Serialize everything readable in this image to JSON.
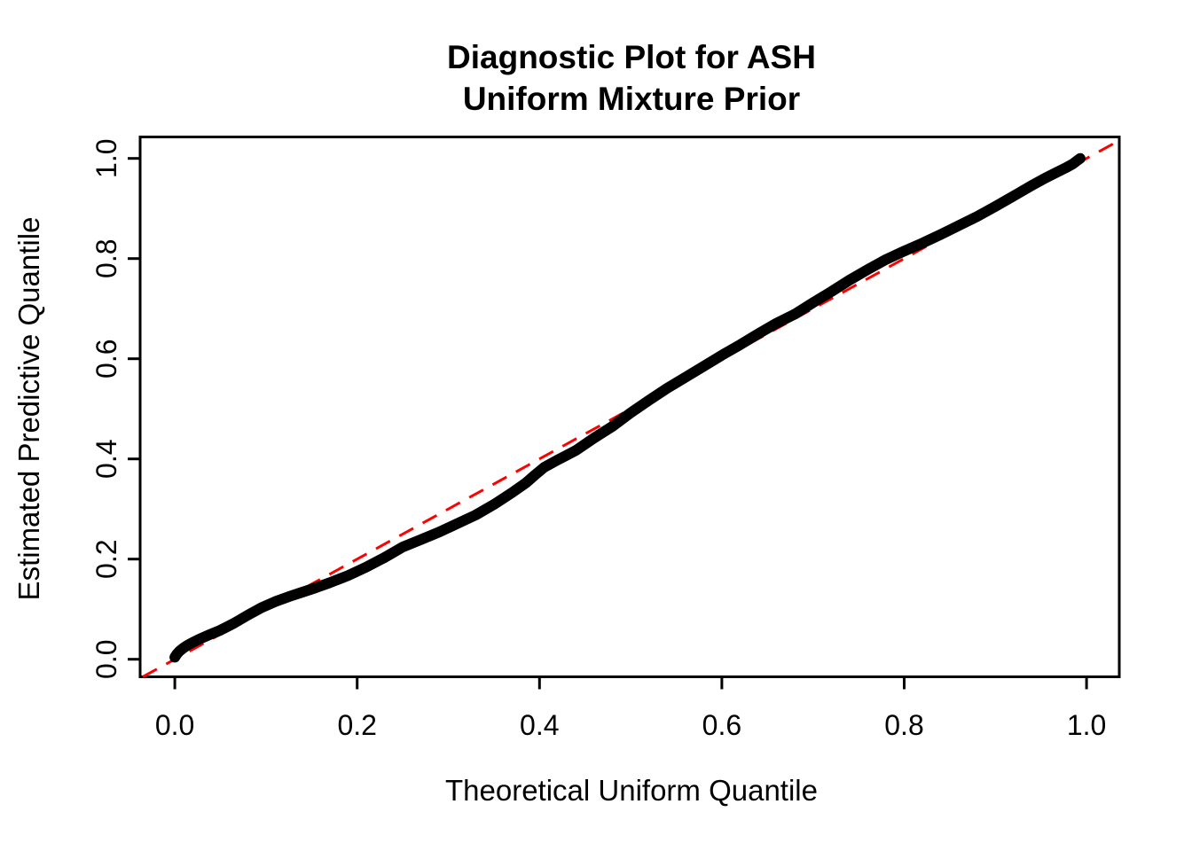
{
  "chart_data": {
    "type": "scatter",
    "title_lines": [
      "Diagnostic Plot for ASH",
      "Uniform Mixture Prior"
    ],
    "xlabel": "Theoretical Uniform Quantile",
    "ylabel": "Estimated Predictive Quantile",
    "xlim": [
      -0.04,
      1.04
    ],
    "ylim": [
      -0.04,
      1.04
    ],
    "grid": false,
    "legend": "none",
    "x_ticks": {
      "values": [
        0.0,
        0.2,
        0.4,
        0.6,
        0.8,
        1.0
      ],
      "labels": [
        "0.0",
        "0.2",
        "0.4",
        "0.6",
        "0.8",
        "1.0"
      ]
    },
    "y_ticks": {
      "values": [
        0.0,
        0.2,
        0.4,
        0.6,
        0.8,
        1.0
      ],
      "labels": [
        "0.0",
        "0.2",
        "0.4",
        "0.6",
        "0.8",
        "1.0"
      ]
    },
    "reference_line": {
      "intercept": 0,
      "slope": 1,
      "color": "#FF0000",
      "style": "dashed"
    },
    "series": [
      {
        "name": "qq-points-estimated-vs-theoretical",
        "marker": "filled-circle",
        "color": "#000000",
        "points": [
          [
            0.0,
            0.004
          ],
          [
            0.002,
            0.01
          ],
          [
            0.005,
            0.016
          ],
          [
            0.009,
            0.022
          ],
          [
            0.014,
            0.028
          ],
          [
            0.02,
            0.034
          ],
          [
            0.028,
            0.041
          ],
          [
            0.038,
            0.049
          ],
          [
            0.05,
            0.058
          ],
          [
            0.065,
            0.072
          ],
          [
            0.08,
            0.088
          ],
          [
            0.095,
            0.103
          ],
          [
            0.11,
            0.115
          ],
          [
            0.125,
            0.125
          ],
          [
            0.14,
            0.134
          ],
          [
            0.155,
            0.143
          ],
          [
            0.17,
            0.153
          ],
          [
            0.19,
            0.167
          ],
          [
            0.21,
            0.184
          ],
          [
            0.23,
            0.203
          ],
          [
            0.25,
            0.224
          ],
          [
            0.27,
            0.239
          ],
          [
            0.29,
            0.254
          ],
          [
            0.31,
            0.271
          ],
          [
            0.33,
            0.288
          ],
          [
            0.35,
            0.309
          ],
          [
            0.37,
            0.333
          ],
          [
            0.385,
            0.352
          ],
          [
            0.395,
            0.368
          ],
          [
            0.405,
            0.383
          ],
          [
            0.42,
            0.398
          ],
          [
            0.44,
            0.417
          ],
          [
            0.46,
            0.442
          ],
          [
            0.48,
            0.465
          ],
          [
            0.5,
            0.492
          ],
          [
            0.52,
            0.517
          ],
          [
            0.54,
            0.541
          ],
          [
            0.56,
            0.563
          ],
          [
            0.58,
            0.585
          ],
          [
            0.6,
            0.607
          ],
          [
            0.62,
            0.628
          ],
          [
            0.64,
            0.65
          ],
          [
            0.66,
            0.671
          ],
          [
            0.68,
            0.689
          ],
          [
            0.7,
            0.712
          ],
          [
            0.72,
            0.734
          ],
          [
            0.74,
            0.757
          ],
          [
            0.76,
            0.778
          ],
          [
            0.78,
            0.798
          ],
          [
            0.8,
            0.815
          ],
          [
            0.82,
            0.831
          ],
          [
            0.84,
            0.848
          ],
          [
            0.86,
            0.866
          ],
          [
            0.88,
            0.884
          ],
          [
            0.9,
            0.904
          ],
          [
            0.92,
            0.925
          ],
          [
            0.94,
            0.946
          ],
          [
            0.955,
            0.961
          ],
          [
            0.968,
            0.973
          ],
          [
            0.978,
            0.982
          ],
          [
            0.985,
            0.989
          ],
          [
            0.99,
            0.996
          ],
          [
            0.993,
            1.0
          ]
        ]
      }
    ],
    "colors": {
      "foreground": "#000000",
      "background": "#FFFFFF",
      "reference": "#FF0000"
    }
  }
}
